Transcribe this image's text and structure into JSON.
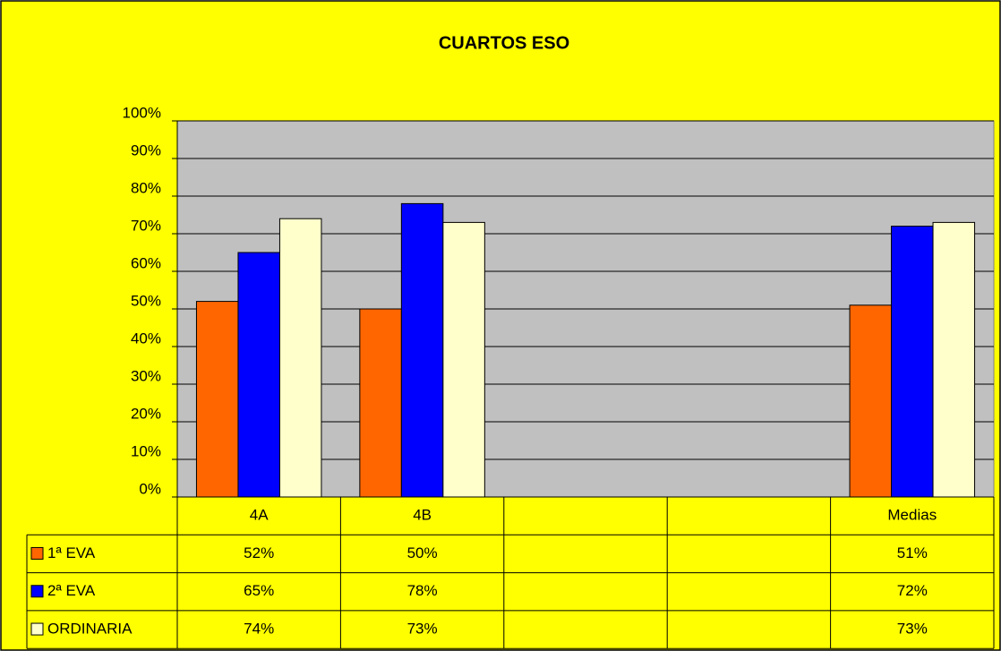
{
  "chart_data": {
    "type": "bar",
    "title": "CUARTOS ESO",
    "categories": [
      "4A",
      "4B",
      null,
      null,
      "Medias"
    ],
    "series": [
      {
        "name": "1ª EVA",
        "color": "#ff6600",
        "values": [
          52,
          50,
          null,
          null,
          51
        ],
        "value_labels": [
          "52%",
          "50%",
          null,
          null,
          "51%"
        ]
      },
      {
        "name": "2ª EVA",
        "color": "#0000ff",
        "values": [
          65,
          78,
          null,
          null,
          72
        ],
        "value_labels": [
          "65%",
          "78%",
          null,
          null,
          "72%"
        ]
      },
      {
        "name": "ORDINARIA",
        "color": "#ffffcc",
        "values": [
          74,
          73,
          null,
          null,
          73
        ],
        "value_labels": [
          "74%",
          "73%",
          null,
          null,
          "73%"
        ]
      }
    ],
    "ylim": [
      0,
      100
    ],
    "yticks": [
      {
        "value": 0,
        "label": "0%"
      },
      {
        "value": 10,
        "label": "10%"
      },
      {
        "value": 20,
        "label": "20%"
      },
      {
        "value": 30,
        "label": "30%"
      },
      {
        "value": 40,
        "label": "40%"
      },
      {
        "value": 50,
        "label": "50%"
      },
      {
        "value": 60,
        "label": "60%"
      },
      {
        "value": 70,
        "label": "70%"
      },
      {
        "value": 80,
        "label": "80%"
      },
      {
        "value": 90,
        "label": "90%"
      },
      {
        "value": 100,
        "label": "100%"
      }
    ],
    "grid": true,
    "plot_background": "#c0c0c0",
    "background": "#ffff00"
  }
}
